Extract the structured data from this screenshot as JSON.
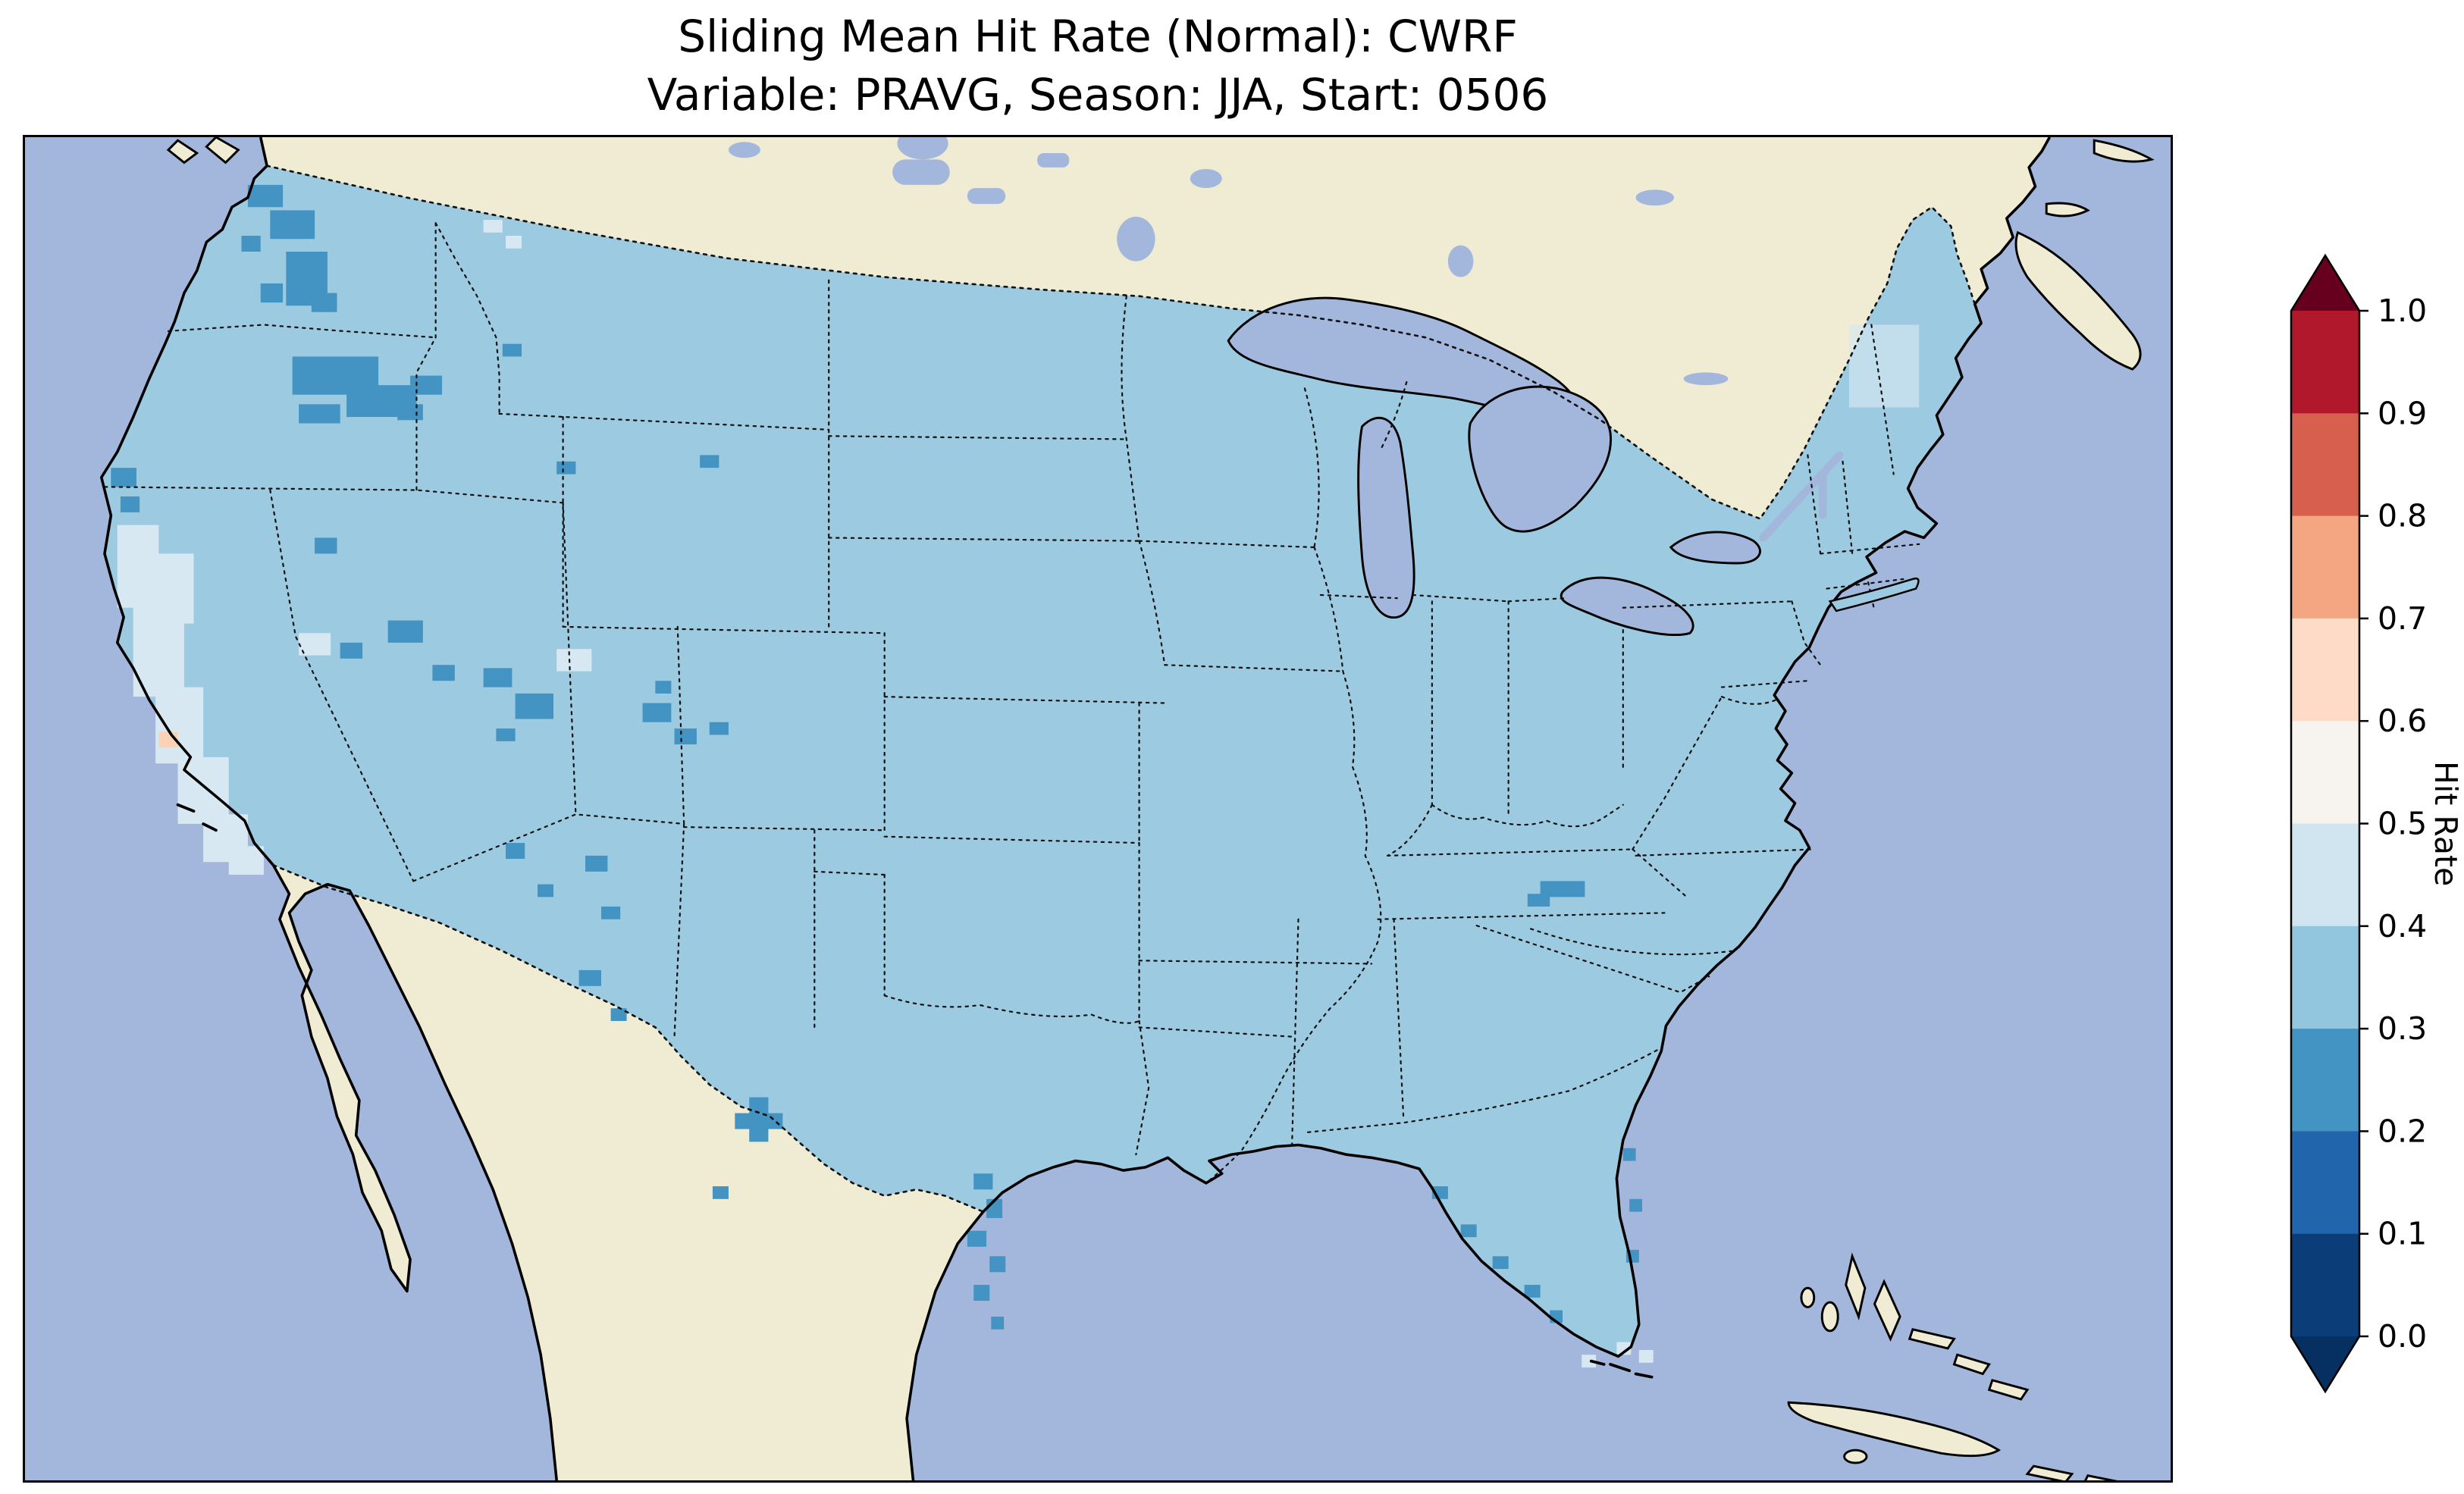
{
  "title": {
    "line1": "Sliding Mean Hit Rate (Normal): CWRF",
    "line2": "Variable: PRAVG, Season: JJA, Start: 0506"
  },
  "colorbar": {
    "label": "Hit Rate",
    "ticks": [
      "1.0",
      "0.9",
      "0.8",
      "0.7",
      "0.6",
      "0.5",
      "0.4",
      "0.3",
      "0.2",
      "0.1",
      "0.0"
    ],
    "extend_over_color": "#67001f",
    "extend_under_color": "#053061",
    "segments": [
      {
        "range": "0.9-1.0",
        "color": "#b2182b"
      },
      {
        "range": "0.8-0.9",
        "color": "#d6604d"
      },
      {
        "range": "0.7-0.8",
        "color": "#f4a582"
      },
      {
        "range": "0.6-0.7",
        "color": "#fddbc7"
      },
      {
        "range": "0.5-0.6",
        "color": "#f7f4ef"
      },
      {
        "range": "0.4-0.5",
        "color": "#d1e5f0"
      },
      {
        "range": "0.3-0.4",
        "color": "#92c5de"
      },
      {
        "range": "0.2-0.3",
        "color": "#4393c3"
      },
      {
        "range": "0.1-0.2",
        "color": "#2166ac"
      },
      {
        "range": "0.0-0.1",
        "color": "#0b3d78"
      }
    ]
  },
  "map": {
    "colors": {
      "ocean": "#a3b6dc",
      "land": "#f0ecd3",
      "field_main": "#9ccae0",
      "field_02_03": "#4393c3",
      "field_04_05": "#d7e8f3",
      "field_06_07": "#fbd2b4"
    },
    "features": [
      "contiguous-united-states",
      "canada",
      "mexico-and-baja-california",
      "great-lakes",
      "cuba-and-bahamas",
      "nova-scotia",
      "dotted-state-borders",
      "solid-coastlines"
    ]
  },
  "chart_data": {
    "type": "heatmap",
    "title": "Sliding Mean Hit Rate (Normal): CWRF",
    "subtitle": "Variable: PRAVG, Season: JJA, Start: 0506",
    "model": "CWRF",
    "variable": "PRAVG",
    "season": "JJA",
    "start": "0506",
    "region": "Contiguous United States (gridded map, land outside US masked)",
    "colorbar_label": "Hit Rate",
    "colorbar_range": [
      0.0,
      1.0
    ],
    "colorbar_ticks": [
      0.0,
      0.1,
      0.2,
      0.3,
      0.4,
      0.5,
      0.6,
      0.7,
      0.8,
      0.9,
      1.0
    ],
    "colormap": "RdBu_r, discrete 0.1 bins, extended on both ends",
    "legend_position": "right",
    "grid": false,
    "value_summary": [
      {
        "bin": "0.3-0.4",
        "where": "dominant value over most of the CONUS"
      },
      {
        "bin": "0.2-0.3",
        "where": "scattered cells: Washington Cascades, Oregon/Idaho, Nevada, Utah, Colorado, New Mexico, west Texas, Texas and Florida coasts, Tennessee/Carolina border"
      },
      {
        "bin": "0.4-0.5",
        "where": "California Central Valley and southern California, small spots in Nevada, southern Utah, Montana, New England, near Florida Keys"
      },
      {
        "bin": "0.6-0.7",
        "where": "single small cell in southern California"
      },
      {
        "bin": "above 0.7",
        "where": "none on map"
      }
    ]
  }
}
